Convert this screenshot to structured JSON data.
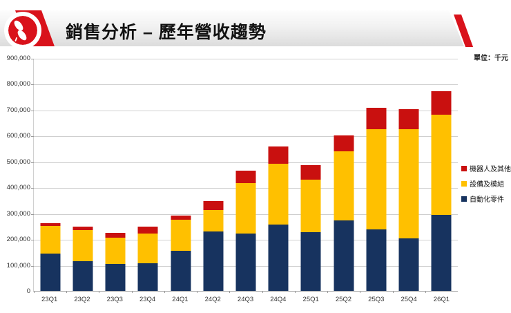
{
  "header": {
    "title": "銷售分析 – 歷年營收趨勢",
    "accent_red": "#D9121B",
    "logo": "sprout-leaf-logo"
  },
  "chart": {
    "unit_label": "單位：千元"
  },
  "chart_data": {
    "type": "bar",
    "stacked": true,
    "title": "銷售分析 – 歷年營收趨勢",
    "unit": "千元",
    "xlabel": "",
    "ylabel": "",
    "ylim": [
      0,
      900000
    ],
    "ytick_step": 100000,
    "yticks": [
      0,
      100000,
      200000,
      300000,
      400000,
      500000,
      600000,
      700000,
      800000,
      900000
    ],
    "grid": true,
    "legend_position": "right",
    "categories": [
      "23Q1",
      "23Q2",
      "23Q3",
      "23Q4",
      "24Q1",
      "24Q2",
      "24Q3",
      "24Q4",
      "25Q1",
      "25Q2",
      "25Q3",
      "25Q4",
      "26Q1"
    ],
    "series": [
      {
        "name": "自動化零件",
        "color": "#17335F",
        "values": [
          144000,
          114000,
          104000,
          106000,
          154000,
          231000,
          221000,
          256000,
          228000,
          272000,
          237000,
          203000,
          295000
        ]
      },
      {
        "name": "設備及模組",
        "color": "#FFC000",
        "values": [
          106000,
          120000,
          101000,
          116000,
          121000,
          82000,
          196000,
          235000,
          201000,
          268000,
          388000,
          422000,
          387000
        ]
      },
      {
        "name": "機器人及其他",
        "color": "#C9100F",
        "values": [
          12000,
          14000,
          19000,
          26000,
          16000,
          35000,
          49000,
          67000,
          58000,
          61000,
          82000,
          77000,
          90000
        ]
      }
    ],
    "totals": [
      262000,
      248000,
      224000,
      248000,
      291000,
      348000,
      466000,
      558000,
      487000,
      601000,
      707000,
      702000,
      772000
    ],
    "colors": {
      "gridline": "#CFCFCF",
      "axis": "#A6A6A6",
      "tick_text": "#333333"
    }
  }
}
